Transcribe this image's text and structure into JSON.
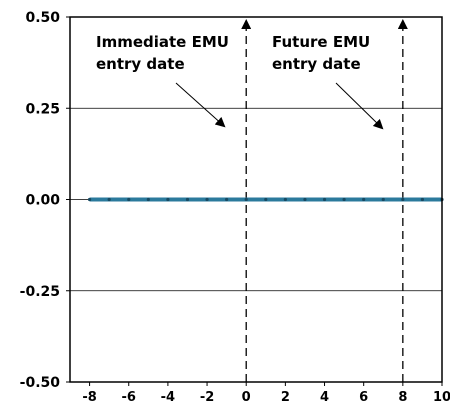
{
  "chart_data": {
    "type": "line",
    "x": [
      -8,
      -7,
      -6,
      -5,
      -4,
      -3,
      -2,
      -1,
      0,
      1,
      2,
      3,
      4,
      5,
      6,
      7,
      8,
      9,
      10
    ],
    "series": [
      {
        "values": [
          0,
          0,
          0,
          0,
          0,
          0,
          0,
          0,
          0,
          0,
          0,
          0,
          0,
          0,
          0,
          0,
          0,
          0,
          0
        ]
      }
    ],
    "xlim": [
      -9,
      10
    ],
    "ylim": [
      -0.5,
      0.5
    ],
    "xticks": [
      -8,
      -6,
      -4,
      -2,
      0,
      2,
      4,
      6,
      8,
      10
    ],
    "yticks": [
      -0.5,
      -0.25,
      0,
      0.25,
      0.5
    ],
    "ytick_labels": [
      "-0.50",
      "-0.25",
      "0.00",
      "0.25",
      "0.50"
    ],
    "grid": "horizontal",
    "vlines": [
      {
        "x": 0,
        "label": [
          "Immediate EMU",
          "entry date"
        ]
      },
      {
        "x": 8,
        "label": [
          "Future EMU",
          "entry date"
        ]
      }
    ],
    "line_color": "#2b7a9c"
  }
}
